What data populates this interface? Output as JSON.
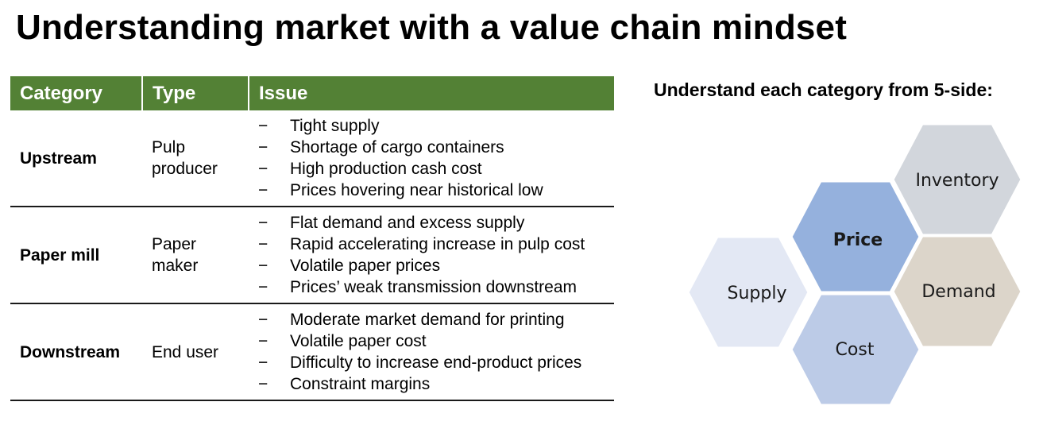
{
  "title": "Understanding market with a value chain mindset",
  "table": {
    "headers": [
      "Category",
      "Type",
      "Issue"
    ],
    "rows": [
      {
        "category": "Upstream",
        "type": "Pulp producer",
        "issues": [
          "Tight supply",
          "Shortage of cargo containers",
          "High production cash cost",
          "Prices hovering near historical low"
        ]
      },
      {
        "category": "Paper mill",
        "type": "Paper maker",
        "issues": [
          "Flat demand and excess supply",
          "Rapid accelerating increase in pulp cost",
          "Volatile paper prices",
          "Prices’ weak transmission downstream"
        ]
      },
      {
        "category": "Downstream",
        "type": "End user",
        "issues": [
          "Moderate market demand for printing",
          "Volatile paper cost",
          "Difficulty to increase end-product prices",
          "Constraint margins"
        ]
      }
    ],
    "bullet": "−"
  },
  "diagram": {
    "subtitle": "Understand each category from 5-side:",
    "hexagons": [
      {
        "label": "Price",
        "color": "#95b1dd",
        "bold": true
      },
      {
        "label": "Inventory",
        "color": "#d2d6dc",
        "bold": false
      },
      {
        "label": "Supply",
        "color": "#e3e8f4",
        "bold": false
      },
      {
        "label": "Demand",
        "color": "#dcd5ca",
        "bold": false
      },
      {
        "label": "Cost",
        "color": "#bccbe7",
        "bold": false
      }
    ]
  }
}
